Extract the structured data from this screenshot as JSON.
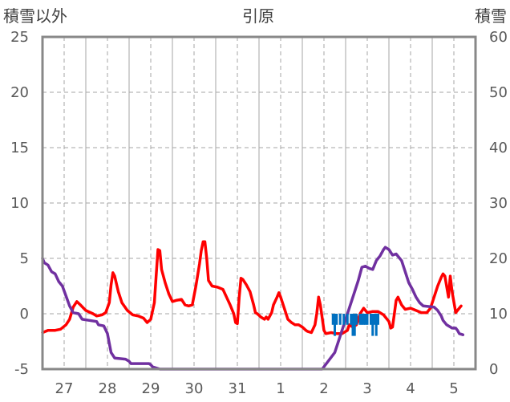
{
  "chart_data": {
    "type": "line",
    "title": "引原",
    "ylabel_left": "積雪以外",
    "ylabel_right": "積雪",
    "left_axis": {
      "min": -5,
      "max": 25,
      "ticks": [
        -5,
        0,
        5,
        10,
        15,
        20,
        25
      ]
    },
    "right_axis": {
      "min": 0,
      "max": 60,
      "ticks": [
        0,
        10,
        20,
        30,
        40,
        50,
        60
      ]
    },
    "x_axis": {
      "start_hour": 0,
      "end_hour": 240,
      "day_labels": [
        "27",
        "28",
        "29",
        "30",
        "31",
        "1",
        "2",
        "3",
        "4",
        "5"
      ]
    },
    "grid": true,
    "series": [
      {
        "kind": "line",
        "color": "#ff0000",
        "values": [
          [
            0,
            -1.7
          ],
          [
            3,
            -1.5
          ],
          [
            7,
            -1.5
          ],
          [
            10,
            -1.4
          ],
          [
            13,
            -1.0
          ],
          [
            15,
            -0.5
          ],
          [
            17,
            0.6
          ],
          [
            19,
            1.1
          ],
          [
            21,
            0.8
          ],
          [
            24,
            0.3
          ],
          [
            28,
            0.0
          ],
          [
            30,
            -0.2
          ],
          [
            33,
            -0.1
          ],
          [
            35,
            0.1
          ],
          [
            37,
            1.0
          ],
          [
            38,
            2.6
          ],
          [
            39,
            3.7
          ],
          [
            40,
            3.4
          ],
          [
            42,
            2.0
          ],
          [
            44,
            1.0
          ],
          [
            47,
            0.3
          ],
          [
            50,
            -0.1
          ],
          [
            53,
            -0.2
          ],
          [
            56,
            -0.4
          ],
          [
            58,
            -0.8
          ],
          [
            60,
            -0.5
          ],
          [
            62,
            1.0
          ],
          [
            63,
            3.5
          ],
          [
            64,
            5.8
          ],
          [
            65,
            5.7
          ],
          [
            66,
            4.0
          ],
          [
            68,
            2.8
          ],
          [
            70,
            1.8
          ],
          [
            72,
            1.1
          ],
          [
            74,
            1.2
          ],
          [
            77,
            1.3
          ],
          [
            79,
            0.8
          ],
          [
            81,
            0.7
          ],
          [
            83,
            0.8
          ],
          [
            85,
            2.5
          ],
          [
            87,
            4.5
          ],
          [
            88,
            5.7
          ],
          [
            89,
            6.5
          ],
          [
            90,
            6.5
          ],
          [
            91,
            5.0
          ],
          [
            92,
            3.0
          ],
          [
            94,
            2.5
          ],
          [
            97,
            2.4
          ],
          [
            100,
            2.2
          ],
          [
            102,
            1.5
          ],
          [
            104,
            0.8
          ],
          [
            106,
            0.0
          ],
          [
            107,
            -0.8
          ],
          [
            108,
            -0.9
          ],
          [
            109,
            1.5
          ],
          [
            110,
            3.2
          ],
          [
            111,
            3.1
          ],
          [
            113,
            2.6
          ],
          [
            115,
            2.0
          ],
          [
            117,
            0.8
          ],
          [
            118,
            0.1
          ],
          [
            119,
            0.0
          ],
          [
            121,
            -0.3
          ],
          [
            123,
            -0.5
          ],
          [
            124,
            -0.3
          ],
          [
            125,
            -0.5
          ],
          [
            127,
            0.1
          ],
          [
            128,
            0.8
          ],
          [
            130,
            1.5
          ],
          [
            131,
            1.9
          ],
          [
            132,
            1.5
          ],
          [
            134,
            0.5
          ],
          [
            136,
            -0.5
          ],
          [
            138,
            -0.8
          ],
          [
            140,
            -1.0
          ],
          [
            142,
            -1.0
          ],
          [
            144,
            -1.2
          ],
          [
            146,
            -1.5
          ],
          [
            147,
            -1.6
          ],
          [
            149,
            -1.7
          ],
          [
            151,
            -1.0
          ],
          [
            152,
            0.0
          ],
          [
            153,
            1.5
          ],
          [
            154,
            0.8
          ],
          [
            156,
            -1.5
          ],
          [
            157,
            -1.8
          ],
          [
            160,
            -1.7
          ],
          [
            163,
            -1.8
          ],
          [
            166,
            -1.8
          ],
          [
            169,
            -1.5
          ],
          [
            170,
            -1.0
          ],
          [
            172,
            -1.2
          ],
          [
            174,
            -1.0
          ],
          [
            175,
            -0.5
          ],
          [
            176,
            0.0
          ],
          [
            178,
            0.5
          ],
          [
            180,
            0.1
          ],
          [
            183,
            0.2
          ],
          [
            186,
            0.2
          ],
          [
            189,
            -0.1
          ],
          [
            192,
            -0.7
          ],
          [
            193,
            -1.3
          ],
          [
            194,
            -1.2
          ],
          [
            195,
            0.0
          ],
          [
            196,
            1.2
          ],
          [
            197,
            1.5
          ],
          [
            199,
            0.8
          ],
          [
            201,
            0.4
          ],
          [
            204,
            0.5
          ],
          [
            207,
            0.3
          ],
          [
            210,
            0.1
          ],
          [
            213,
            0.1
          ],
          [
            215,
            0.5
          ],
          [
            217,
            1.5
          ],
          [
            219,
            2.5
          ],
          [
            221,
            3.3
          ],
          [
            222,
            3.6
          ],
          [
            223,
            3.4
          ],
          [
            225,
            1.5
          ],
          [
            226,
            3.4
          ],
          [
            227,
            2.0
          ],
          [
            229,
            0.1
          ],
          [
            230,
            0.3
          ],
          [
            232,
            0.7
          ]
        ]
      },
      {
        "kind": "line",
        "color": "#7030a0",
        "values": [
          [
            0,
            5.0
          ],
          [
            1,
            4.6
          ],
          [
            3,
            4.4
          ],
          [
            5,
            3.8
          ],
          [
            7,
            3.6
          ],
          [
            9,
            2.9
          ],
          [
            11,
            2.5
          ],
          [
            13,
            1.6
          ],
          [
            15,
            0.7
          ],
          [
            17,
            0.1
          ],
          [
            20,
            0.0
          ],
          [
            22,
            -0.5
          ],
          [
            26,
            -0.6
          ],
          [
            30,
            -0.7
          ],
          [
            31,
            -1.0
          ],
          [
            34,
            -1.1
          ],
          [
            36,
            -1.8
          ],
          [
            38,
            -3.5
          ],
          [
            40,
            -4.0
          ],
          [
            46,
            -4.1
          ],
          [
            48,
            -4.3
          ],
          [
            49,
            -4.5
          ],
          [
            59,
            -4.5
          ],
          [
            60,
            -4.6
          ],
          [
            61,
            -4.8
          ],
          [
            65,
            -5.0
          ],
          [
            155,
            -5.0
          ],
          [
            162,
            -3.5
          ],
          [
            165,
            -2.0
          ],
          [
            169,
            0.0
          ],
          [
            173,
            2.0
          ],
          [
            175,
            3.0
          ],
          [
            177,
            4.2
          ],
          [
            179,
            4.3
          ],
          [
            181,
            4.1
          ],
          [
            183,
            4.0
          ],
          [
            185,
            4.8
          ],
          [
            186,
            5.0
          ],
          [
            187,
            5.2
          ],
          [
            189,
            5.8
          ],
          [
            190,
            6.0
          ],
          [
            192,
            5.8
          ],
          [
            194,
            5.3
          ],
          [
            196,
            5.4
          ],
          [
            198,
            5.0
          ],
          [
            199,
            4.8
          ],
          [
            201,
            3.8
          ],
          [
            203,
            2.8
          ],
          [
            205,
            2.2
          ],
          [
            207,
            1.5
          ],
          [
            209,
            1.0
          ],
          [
            211,
            0.7
          ],
          [
            217,
            0.6
          ],
          [
            219,
            0.3
          ],
          [
            221,
            -0.2
          ],
          [
            222,
            -0.6
          ],
          [
            224,
            -1.0
          ],
          [
            227,
            -1.3
          ],
          [
            229,
            -1.3
          ],
          [
            230,
            -1.5
          ],
          [
            231,
            -1.8
          ],
          [
            233,
            -1.9
          ]
        ]
      },
      {
        "kind": "bars",
        "color": "#0070c0",
        "values": [
          [
            161,
            0.0,
            -1.0
          ],
          [
            162,
            0.0,
            -2.0
          ],
          [
            163,
            0.0,
            -1.0
          ],
          [
            165,
            0.0,
            -1.0
          ],
          [
            167,
            0.0,
            -1.0
          ],
          [
            169,
            0.0,
            -1.0
          ],
          [
            171,
            0.0,
            -1.0
          ],
          [
            172,
            0.0,
            -2.0
          ],
          [
            173,
            0.0,
            -2.0
          ],
          [
            174,
            0.0,
            -1.0
          ],
          [
            176,
            0.0,
            -1.0
          ],
          [
            177,
            0.0,
            -1.0
          ],
          [
            178,
            0.0,
            -1.0
          ],
          [
            179,
            0.0,
            -1.0
          ],
          [
            180,
            0.0,
            -1.0
          ],
          [
            182,
            0.0,
            -1.0
          ],
          [
            183,
            0.0,
            -2.0
          ],
          [
            184,
            0.0,
            -1.0
          ],
          [
            185,
            0.0,
            -2.0
          ],
          [
            186,
            0.0,
            -1.0
          ]
        ]
      }
    ]
  }
}
